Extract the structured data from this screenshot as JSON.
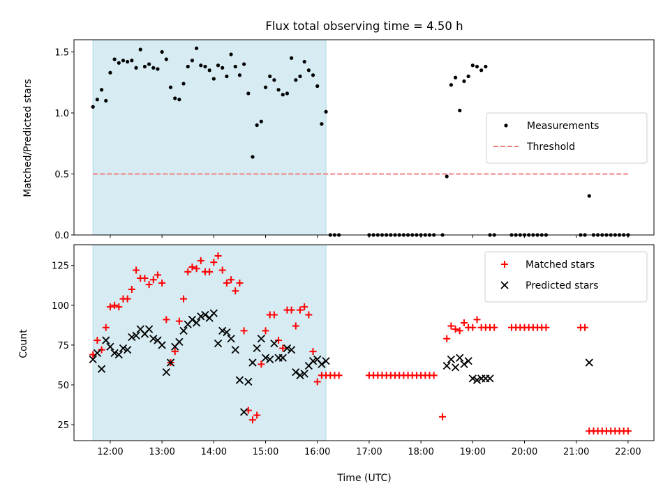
{
  "chart_data": [
    {
      "type": "scatter",
      "title": "Flux total observing time = 4.50 h",
      "xlabel": "",
      "ylabel": "Matched/Predicted stars",
      "xlim": [
        "11:18",
        "22:30"
      ],
      "ylim": [
        0,
        1.6
      ],
      "yticks": [
        0.0,
        0.5,
        1.0,
        1.5
      ],
      "ytick_labels": [
        "0.0",
        "0.5",
        "1.0",
        "1.5"
      ],
      "shaded_interval": [
        "11:40",
        "16:10"
      ],
      "legend": {
        "position": "center-right",
        "entries": [
          "Measurements",
          "Threshold"
        ]
      },
      "threshold": {
        "name": "Threshold",
        "value": 0.5,
        "x_range": [
          "11:40",
          "22:00"
        ],
        "color": "#f08080"
      },
      "series": [
        {
          "name": "Measurements",
          "marker": "dot",
          "color": "#000000",
          "x": [
            "11:40",
            "11:45",
            "11:50",
            "11:55",
            "12:00",
            "12:05",
            "12:10",
            "12:15",
            "12:20",
            "12:25",
            "12:30",
            "12:35",
            "12:40",
            "12:45",
            "12:50",
            "12:55",
            "13:00",
            "13:05",
            "13:10",
            "13:15",
            "13:20",
            "13:25",
            "13:30",
            "13:35",
            "13:40",
            "13:45",
            "13:50",
            "13:55",
            "14:00",
            "14:05",
            "14:10",
            "14:15",
            "14:20",
            "14:25",
            "14:30",
            "14:35",
            "14:40",
            "14:45",
            "14:50",
            "14:55",
            "15:00",
            "15:05",
            "15:10",
            "15:15",
            "15:20",
            "15:25",
            "15:30",
            "15:35",
            "15:40",
            "15:45",
            "15:50",
            "15:55",
            "16:00",
            "16:05",
            "16:10",
            "16:15",
            "16:20",
            "16:25",
            "17:00",
            "17:05",
            "17:10",
            "17:15",
            "17:20",
            "17:25",
            "17:30",
            "17:35",
            "17:40",
            "17:45",
            "17:50",
            "17:55",
            "18:00",
            "18:05",
            "18:10",
            "18:15",
            "18:25",
            "18:30",
            "18:35",
            "18:40",
            "18:45",
            "18:50",
            "18:55",
            "19:00",
            "19:05",
            "19:10",
            "19:15",
            "19:20",
            "19:25",
            "19:45",
            "19:50",
            "19:55",
            "20:00",
            "20:05",
            "20:10",
            "20:15",
            "20:20",
            "20:25",
            "21:05",
            "21:10",
            "21:15",
            "21:20",
            "21:25",
            "21:30",
            "21:35",
            "21:40",
            "21:45",
            "21:50",
            "21:55",
            "22:00"
          ],
          "y": [
            1.05,
            1.11,
            1.19,
            1.1,
            1.33,
            1.44,
            1.41,
            1.43,
            1.42,
            1.43,
            1.37,
            1.52,
            1.38,
            1.4,
            1.37,
            1.36,
            1.5,
            1.44,
            1.21,
            1.12,
            1.11,
            1.24,
            1.38,
            1.43,
            1.53,
            1.39,
            1.38,
            1.35,
            1.28,
            1.39,
            1.37,
            1.3,
            1.48,
            1.38,
            1.31,
            1.4,
            1.16,
            0.64,
            0.9,
            0.93,
            1.21,
            1.3,
            1.27,
            1.19,
            1.15,
            1.16,
            1.45,
            1.27,
            1.3,
            1.42,
            1.35,
            1.31,
            1.22,
            0.91,
            1.01,
            0.0,
            0.0,
            0.0,
            0.0,
            0.0,
            0.0,
            0.0,
            0.0,
            0.0,
            0.0,
            0.0,
            0.0,
            0.0,
            0.0,
            0.0,
            0.0,
            0.0,
            0.0,
            0.0,
            0.0,
            0.48,
            1.23,
            1.29,
            1.02,
            1.26,
            1.3,
            1.39,
            1.38,
            1.35,
            1.38,
            0.0,
            0.0,
            0.0,
            0.0,
            0.0,
            0.0,
            0.0,
            0.0,
            0.0,
            0.0,
            0.0,
            0.0,
            0.0,
            0.32,
            0.0,
            0.0,
            0.0,
            0.0,
            0.0,
            0.0,
            0.0,
            0.0,
            0.0
          ]
        }
      ]
    },
    {
      "type": "scatter",
      "title": "",
      "xlabel": "Time (UTC)",
      "ylabel": "Count",
      "xlim": [
        "11:18",
        "22:30"
      ],
      "ylim": [
        15,
        138
      ],
      "yticks": [
        25,
        50,
        75,
        100,
        125
      ],
      "ytick_labels": [
        "25",
        "50",
        "75",
        "100",
        "125"
      ],
      "xticks": [
        "12:00",
        "13:00",
        "14:00",
        "15:00",
        "16:00",
        "17:00",
        "18:00",
        "19:00",
        "20:00",
        "21:00",
        "22:00"
      ],
      "shaded_interval": [
        "11:40",
        "16:10"
      ],
      "legend": {
        "position": "top-right",
        "entries": [
          "Matched stars",
          "Predicted stars"
        ]
      },
      "series": [
        {
          "name": "Matched stars",
          "marker": "plus",
          "color": "#ff0000",
          "x": [
            "11:40",
            "11:45",
            "11:50",
            "11:55",
            "12:00",
            "12:05",
            "12:10",
            "12:15",
            "12:20",
            "12:25",
            "12:30",
            "12:35",
            "12:40",
            "12:45",
            "12:50",
            "12:55",
            "13:00",
            "13:05",
            "13:10",
            "13:15",
            "13:20",
            "13:25",
            "13:30",
            "13:35",
            "13:40",
            "13:45",
            "13:50",
            "13:55",
            "14:00",
            "14:05",
            "14:10",
            "14:15",
            "14:20",
            "14:25",
            "14:30",
            "14:35",
            "14:40",
            "14:45",
            "14:50",
            "14:55",
            "15:00",
            "15:05",
            "15:10",
            "15:15",
            "15:20",
            "15:25",
            "15:30",
            "15:35",
            "15:40",
            "15:45",
            "15:50",
            "15:55",
            "16:00",
            "16:05",
            "16:10",
            "16:15",
            "16:20",
            "16:25",
            "17:00",
            "17:05",
            "17:10",
            "17:15",
            "17:20",
            "17:25",
            "17:30",
            "17:35",
            "17:40",
            "17:45",
            "17:50",
            "17:55",
            "18:00",
            "18:05",
            "18:10",
            "18:15",
            "18:25",
            "18:30",
            "18:35",
            "18:40",
            "18:45",
            "18:50",
            "18:55",
            "19:00",
            "19:05",
            "19:10",
            "19:15",
            "19:20",
            "19:25",
            "19:45",
            "19:50",
            "19:55",
            "20:00",
            "20:05",
            "20:10",
            "20:15",
            "20:20",
            "20:25",
            "21:05",
            "21:10",
            "21:15",
            "21:20",
            "21:25",
            "21:30",
            "21:35",
            "21:40",
            "21:45",
            "21:50",
            "21:55",
            "22:00"
          ],
          "y": [
            69,
            78,
            72,
            86,
            99,
            100,
            99,
            104,
            104,
            110,
            122,
            117,
            117,
            113,
            116,
            119,
            114,
            91,
            64,
            71,
            90,
            104,
            121,
            124,
            123,
            128,
            121,
            121,
            127,
            131,
            122,
            114,
            116,
            109,
            114,
            84,
            34,
            28,
            31,
            63,
            84,
            94,
            94,
            78,
            73,
            97,
            97,
            87,
            97,
            99,
            94,
            71,
            52,
            56,
            56,
            56,
            56,
            56,
            56,
            56,
            56,
            56,
            56,
            56,
            56,
            56,
            56,
            56,
            56,
            56,
            56,
            56,
            56,
            56,
            30,
            79,
            87,
            85,
            84,
            89,
            86,
            86,
            91,
            86,
            86,
            86,
            86,
            86,
            86,
            86,
            86,
            86,
            86,
            86,
            86,
            86,
            86,
            86,
            21,
            21,
            21,
            21,
            21,
            21,
            21,
            21,
            21,
            21
          ]
        },
        {
          "name": "Predicted stars",
          "marker": "x",
          "color": "#000000",
          "x": [
            "11:40",
            "11:45",
            "11:50",
            "11:55",
            "12:00",
            "12:05",
            "12:10",
            "12:15",
            "12:20",
            "12:25",
            "12:30",
            "12:35",
            "12:40",
            "12:45",
            "12:50",
            "12:55",
            "13:00",
            "13:05",
            "13:10",
            "13:15",
            "13:20",
            "13:25",
            "13:30",
            "13:35",
            "13:40",
            "13:45",
            "13:50",
            "13:55",
            "14:00",
            "14:05",
            "14:10",
            "14:15",
            "14:20",
            "14:25",
            "14:30",
            "14:35",
            "14:40",
            "14:45",
            "14:50",
            "14:55",
            "15:00",
            "15:05",
            "15:10",
            "15:15",
            "15:20",
            "15:25",
            "15:30",
            "15:35",
            "15:40",
            "15:45",
            "15:50",
            "15:55",
            "16:00",
            "16:05",
            "16:10",
            "18:30",
            "18:35",
            "18:40",
            "18:45",
            "18:50",
            "18:55",
            "19:00",
            "19:05",
            "19:10",
            "19:15",
            "19:20",
            "21:15"
          ],
          "y": [
            66,
            70,
            60,
            78,
            74,
            70,
            69,
            73,
            72,
            80,
            81,
            85,
            82,
            85,
            79,
            78,
            75,
            58,
            64,
            74,
            77,
            84,
            88,
            91,
            89,
            93,
            94,
            92,
            95,
            76,
            84,
            83,
            79,
            72,
            53,
            33,
            52,
            64,
            73,
            79,
            67,
            66,
            76,
            67,
            67,
            73,
            72,
            58,
            56,
            57,
            62,
            65,
            66,
            63,
            65,
            62,
            66,
            61,
            67,
            63,
            65,
            54,
            53,
            54,
            54,
            54,
            64
          ]
        }
      ]
    }
  ]
}
